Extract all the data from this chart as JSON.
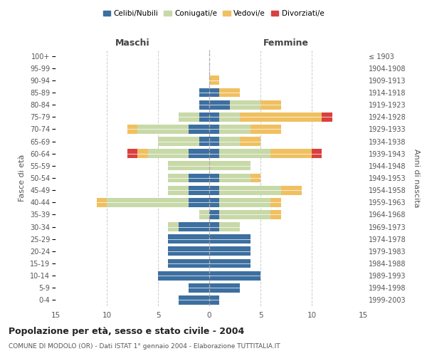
{
  "age_groups": [
    "0-4",
    "5-9",
    "10-14",
    "15-19",
    "20-24",
    "25-29",
    "30-34",
    "35-39",
    "40-44",
    "45-49",
    "50-54",
    "55-59",
    "60-64",
    "65-69",
    "70-74",
    "75-79",
    "80-84",
    "85-89",
    "90-94",
    "95-99",
    "100+"
  ],
  "birth_years": [
    "1999-2003",
    "1994-1998",
    "1989-1993",
    "1984-1988",
    "1979-1983",
    "1974-1978",
    "1969-1973",
    "1964-1968",
    "1959-1963",
    "1954-1958",
    "1949-1953",
    "1944-1948",
    "1939-1943",
    "1934-1938",
    "1929-1933",
    "1924-1928",
    "1919-1923",
    "1914-1918",
    "1909-1913",
    "1904-1908",
    "≤ 1903"
  ],
  "maschi": {
    "celibe": [
      3,
      2,
      5,
      4,
      4,
      4,
      3,
      0,
      2,
      2,
      2,
      0,
      2,
      1,
      2,
      1,
      1,
      1,
      0,
      0,
      0
    ],
    "coniugato": [
      0,
      0,
      0,
      0,
      0,
      0,
      1,
      1,
      8,
      2,
      2,
      4,
      4,
      4,
      5,
      2,
      0,
      0,
      0,
      0,
      0
    ],
    "vedovo": [
      0,
      0,
      0,
      0,
      0,
      0,
      0,
      0,
      1,
      0,
      0,
      0,
      1,
      0,
      1,
      0,
      0,
      0,
      0,
      0,
      0
    ],
    "divorziato": [
      0,
      0,
      0,
      0,
      0,
      0,
      0,
      0,
      0,
      0,
      0,
      0,
      1,
      0,
      0,
      0,
      0,
      0,
      0,
      0,
      0
    ]
  },
  "femmine": {
    "celibe": [
      1,
      3,
      5,
      4,
      4,
      4,
      1,
      1,
      1,
      1,
      1,
      0,
      1,
      1,
      1,
      1,
      2,
      1,
      0,
      0,
      0
    ],
    "coniugato": [
      0,
      0,
      0,
      0,
      0,
      0,
      2,
      5,
      5,
      6,
      3,
      4,
      5,
      2,
      3,
      2,
      3,
      0,
      0,
      0,
      0
    ],
    "vedovo": [
      0,
      0,
      0,
      0,
      0,
      0,
      0,
      1,
      1,
      2,
      1,
      0,
      4,
      2,
      3,
      8,
      2,
      2,
      1,
      0,
      0
    ],
    "divorziato": [
      0,
      0,
      0,
      0,
      0,
      0,
      0,
      0,
      0,
      0,
      0,
      0,
      1,
      0,
      0,
      1,
      0,
      0,
      0,
      0,
      0
    ]
  },
  "colors": {
    "celibe": "#3d6fa0",
    "coniugato": "#c8d9a8",
    "vedovo": "#f0c060",
    "divorziato": "#d94040"
  },
  "legend_labels": [
    "Celibi/Nubili",
    "Coniugati/e",
    "Vedovi/e",
    "Divorziati/e"
  ],
  "xlabel_left": "Maschi",
  "xlabel_right": "Femmine",
  "ylabel_left": "Fasce di età",
  "ylabel_right": "Anni di nascita",
  "title": "Popolazione per età, sesso e stato civile - 2004",
  "subtitle": "COMUNE DI MODOLO (OR) - Dati ISTAT 1° gennaio 2004 - Elaborazione TUTTITALIA.IT",
  "xlim": 15,
  "bg_color": "#ffffff",
  "grid_color": "#cccccc"
}
